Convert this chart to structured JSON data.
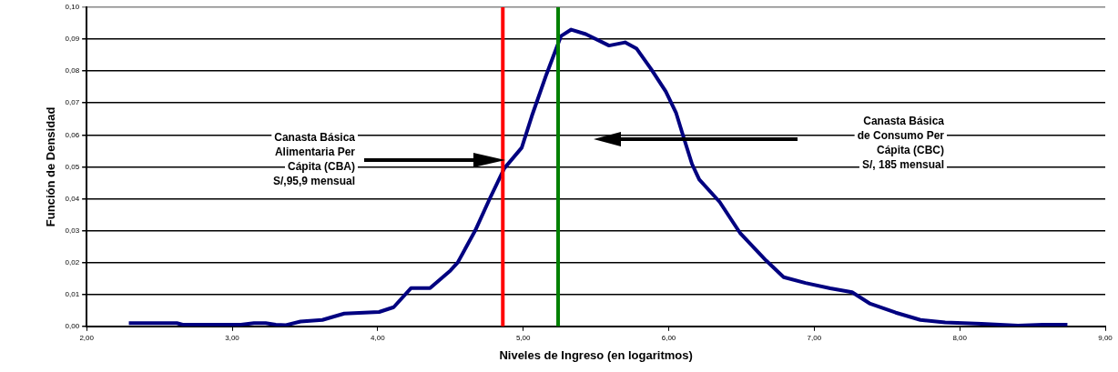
{
  "chart_data": {
    "type": "line",
    "xlabel": "Niveles de Ingreso (en logaritmos)",
    "ylabel": "Función de Densidad",
    "series": [
      {
        "color": "#000080",
        "x": [
          2.29,
          2.62,
          2.66,
          3.06,
          3.15,
          3.23,
          3.3,
          3.37,
          3.47,
          3.62,
          3.77,
          4.01,
          4.11,
          4.23,
          4.36,
          4.5,
          4.55,
          4.67,
          4.77,
          4.87,
          4.99,
          5.06,
          5.16,
          5.26,
          5.33,
          5.43,
          5.59,
          5.7,
          5.78,
          5.88,
          5.98,
          6.05,
          6.1,
          6.16,
          6.21,
          6.35,
          6.49,
          6.67,
          6.79,
          6.94,
          7.11,
          7.26,
          7.38,
          7.56,
          7.73,
          7.9,
          8.15,
          8.4,
          8.57,
          8.74
        ],
        "values": [
          0.001,
          0.001,
          0.0005,
          0.0005,
          0.001,
          0.001,
          0.0005,
          0.0004,
          0.0015,
          0.002,
          0.004,
          0.0045,
          0.006,
          0.012,
          0.012,
          0.0175,
          0.02,
          0.03,
          0.04,
          0.0495,
          0.056,
          0.066,
          0.079,
          0.091,
          0.093,
          0.0916,
          0.088,
          0.089,
          0.087,
          0.0806,
          0.0736,
          0.067,
          0.0596,
          0.0509,
          0.046,
          0.039,
          0.0293,
          0.0206,
          0.0154,
          0.0136,
          0.0119,
          0.0107,
          0.0072,
          0.0043,
          0.002,
          0.0012,
          0.0008,
          0.0002,
          0.0005,
          0.0005
        ]
      }
    ],
    "xlim": [
      2,
      9
    ],
    "xticks": [
      {
        "value": 2,
        "label": "2,00"
      },
      {
        "value": 3,
        "label": "3,00"
      },
      {
        "value": 4,
        "label": "4,00"
      },
      {
        "value": 5,
        "label": "5,00"
      },
      {
        "value": 6,
        "label": "6,00"
      },
      {
        "value": 7,
        "label": "7,00"
      },
      {
        "value": 8,
        "label": "8,00"
      },
      {
        "value": 9,
        "label": "9,00"
      }
    ],
    "ylim": [
      0,
      0.1
    ],
    "yticks": [
      {
        "value": 0,
        "label": "0,00"
      },
      {
        "value": 0.01,
        "label": "0,01"
      },
      {
        "value": 0.02,
        "label": "0,02"
      },
      {
        "value": 0.03,
        "label": "0,03"
      },
      {
        "value": 0.04,
        "label": "0,04"
      },
      {
        "value": 0.05,
        "label": "0,05"
      },
      {
        "value": 0.06,
        "label": "0,06"
      },
      {
        "value": 0.07,
        "label": "0,07"
      },
      {
        "value": 0.08,
        "label": "0,08"
      },
      {
        "value": 0.09,
        "label": "0,09"
      },
      {
        "value": 0.1,
        "label": "0,10"
      }
    ],
    "ref_lines": [
      {
        "axis": "x",
        "value": 4.86,
        "color": "#ff0000"
      },
      {
        "axis": "x",
        "value": 5.24,
        "color": "#008000"
      }
    ],
    "annotations": [
      "Canasta Básica\nAlimentaria Per\nCápita (CBA)\nS/,95,9 mensual",
      "Canasta Básica\nde Consumo Per\nCápita (CBC)\nS/, 185 mensual"
    ],
    "grid": "y",
    "legend": false,
    "marker": "none",
    "line_style": "solid"
  }
}
